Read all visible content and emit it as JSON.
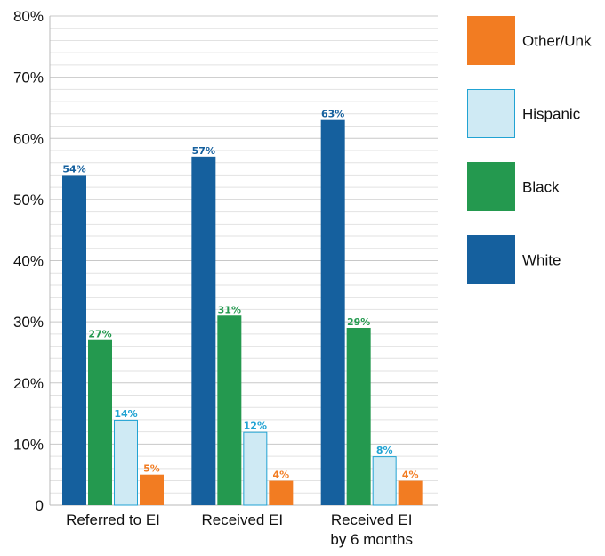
{
  "chart_data": {
    "type": "bar",
    "categories": [
      [
        "Referred to EI"
      ],
      [
        "Received EI"
      ],
      [
        "Received EI",
        "by 6 months"
      ]
    ],
    "series": [
      {
        "name": "White",
        "color": "#15609E",
        "fill": "#15609E",
        "values": [
          54,
          57,
          63
        ],
        "labels": [
          "54%",
          "57%",
          "63%"
        ]
      },
      {
        "name": "Black",
        "color": "#24994F",
        "fill": "#24994F",
        "values": [
          27,
          31,
          29
        ],
        "labels": [
          "27%",
          "31%",
          "29%"
        ]
      },
      {
        "name": "Hispanic",
        "color": "#21A3D3",
        "fill": "#CFEAF4",
        "values": [
          14,
          12,
          8
        ],
        "labels": [
          "14%",
          "12%",
          "8%"
        ]
      },
      {
        "name": "Other/Unk",
        "color": "#F27C22",
        "fill": "#F27C22",
        "values": [
          5,
          4,
          4
        ],
        "labels": [
          "5%",
          "4%",
          "4%"
        ]
      }
    ],
    "ylim": [
      0,
      80
    ],
    "y_ticks": [
      0,
      10,
      20,
      30,
      40,
      50,
      60,
      70,
      80
    ],
    "y_tick_labels": [
      "0",
      "10%",
      "20%",
      "30%",
      "40%",
      "50%",
      "60%",
      "70%",
      "80%"
    ],
    "minor_gridlines_per_major": 4,
    "grid": true,
    "legend": {
      "placement": "right",
      "order": [
        "Other/Unk",
        "Hispanic",
        "Black",
        "White"
      ]
    }
  }
}
